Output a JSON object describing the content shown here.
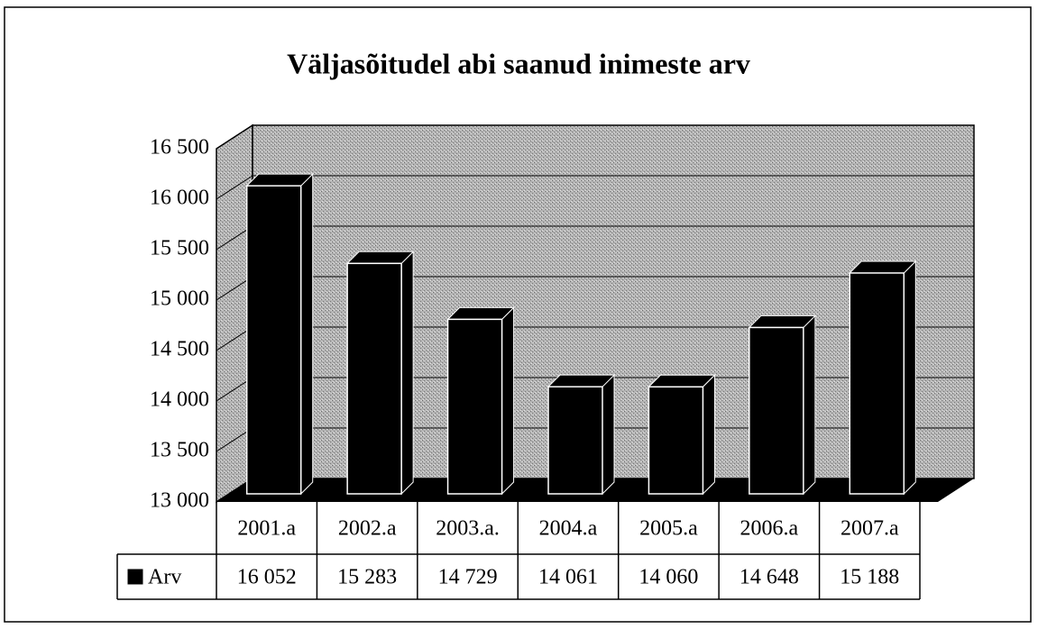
{
  "chart_data": {
    "type": "bar3d",
    "title": "Väljasõitudel abi saanud inimeste arv",
    "categories": [
      "2001.a",
      "2002.a",
      "2003.a.",
      "2004.a",
      "2005.a",
      "2006.a",
      "2007.a"
    ],
    "series": [
      {
        "name": "Arv",
        "color": "#000000",
        "values": [
          16052,
          15283,
          14729,
          14061,
          14060,
          14648,
          15188
        ],
        "value_labels": [
          "16 052",
          "15 283",
          "14 729",
          "14 061",
          "14 060",
          "14 648",
          "15 188"
        ]
      }
    ],
    "ylim": [
      13000,
      16500
    ],
    "yticks": [
      {
        "value": 13000,
        "label": "13 000"
      },
      {
        "value": 13500,
        "label": "13 500"
      },
      {
        "value": 14000,
        "label": "14 000"
      },
      {
        "value": 14500,
        "label": "14 500"
      },
      {
        "value": 15000,
        "label": "15 000"
      },
      {
        "value": 15500,
        "label": "15 500"
      },
      {
        "value": 16000,
        "label": "16 000"
      },
      {
        "value": 16500,
        "label": "16 500"
      }
    ],
    "grid": true,
    "data_table": true
  }
}
